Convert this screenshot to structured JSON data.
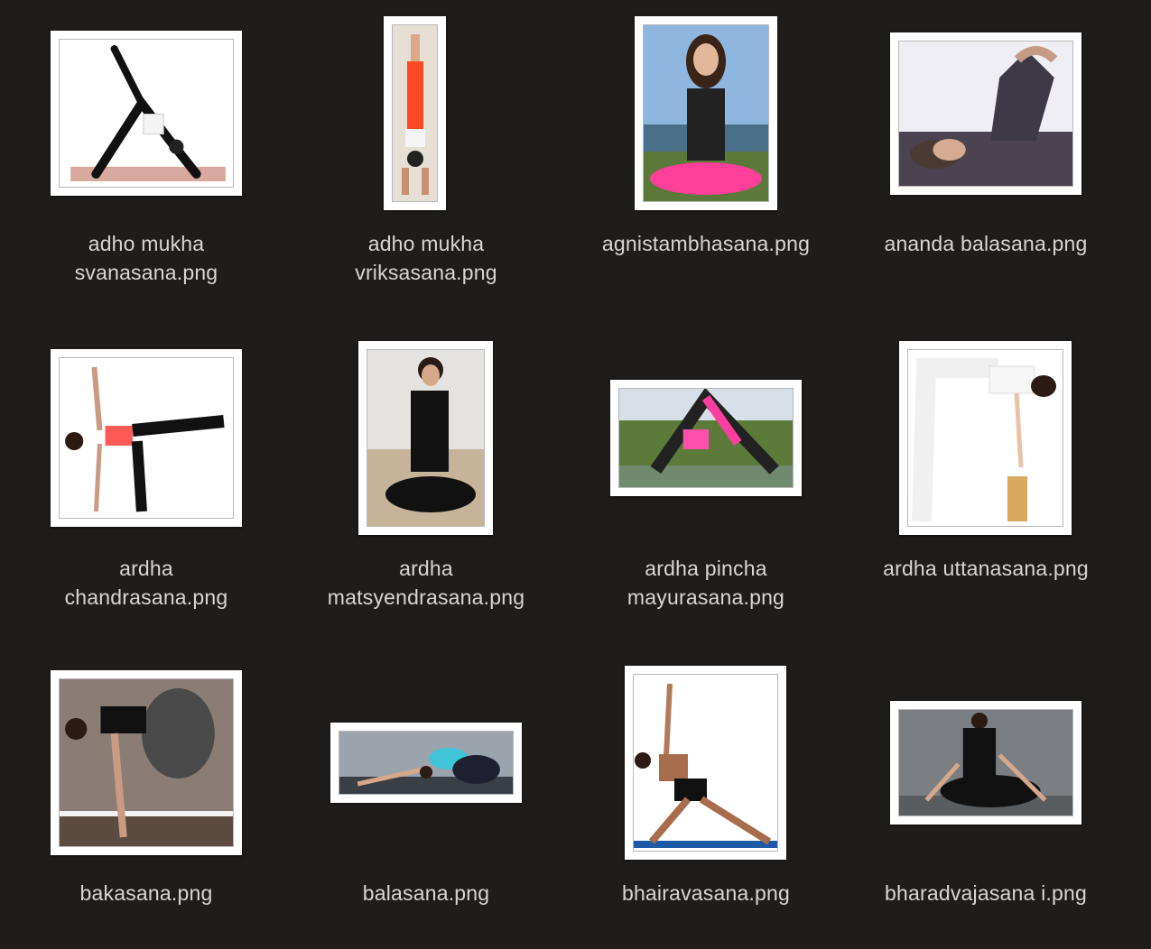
{
  "window": {
    "title": ""
  },
  "files": [
    {
      "name": "adho mukha\nsvanasana.png",
      "icon": "image-thumbnail-icon"
    },
    {
      "name": "adho mukha\nvriksasana.png",
      "icon": "image-thumbnail-icon"
    },
    {
      "name": "agnistambhasana.png",
      "icon": "image-thumbnail-icon"
    },
    {
      "name": "ananda balasana.png",
      "icon": "image-thumbnail-icon"
    },
    {
      "name": "ardha\nchandrasana.png",
      "icon": "image-thumbnail-icon"
    },
    {
      "name": "ardha\nmatsyendrasana.png",
      "icon": "image-thumbnail-icon"
    },
    {
      "name": "ardha pincha\nmayurasana.png",
      "icon": "image-thumbnail-icon"
    },
    {
      "name": "ardha uttanasana.png",
      "icon": "image-thumbnail-icon"
    },
    {
      "name": "bakasana.png",
      "icon": "image-thumbnail-icon"
    },
    {
      "name": "balasana.png",
      "icon": "image-thumbnail-icon"
    },
    {
      "name": "bhairavasana.png",
      "icon": "image-thumbnail-icon"
    },
    {
      "name": "bharadvajasana i.png",
      "icon": "image-thumbnail-icon"
    }
  ],
  "colors": {
    "background": "#1f1d1c",
    "label_text": "#d8d6d4",
    "thumbnail_frame": "#ffffff"
  }
}
